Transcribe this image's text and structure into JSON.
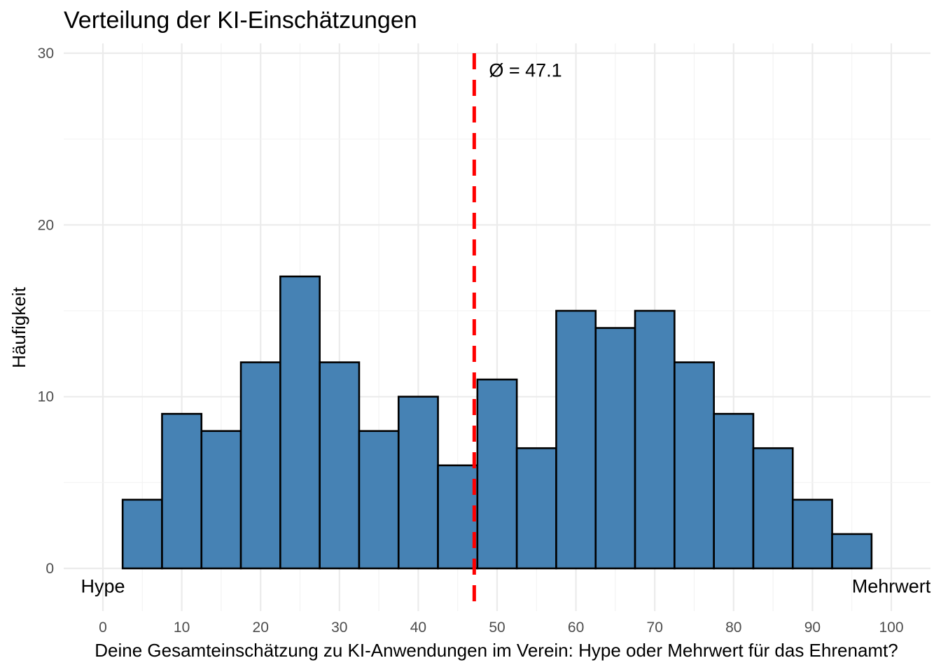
{
  "chart_data": {
    "type": "bar",
    "title": "Verteilung der KI-Einschätzungen",
    "xlabel": "Deine Gesamteinschätzung zu KI-Anwendungen im Verein: Hype oder Mehrwert für das Ehrenamt?",
    "ylabel": "Häufigkeit",
    "xlim": [
      -5,
      105
    ],
    "ylim": [
      -2.5,
      30
    ],
    "x_ticks": [
      0,
      10,
      20,
      30,
      40,
      50,
      60,
      70,
      80,
      90,
      100
    ],
    "y_ticks": [
      0,
      10,
      20,
      30
    ],
    "grid": true,
    "bin_width": 5,
    "bin_centers": [
      5,
      10,
      15,
      20,
      25,
      30,
      35,
      40,
      45,
      50,
      55,
      60,
      65,
      70,
      75,
      80,
      85,
      90,
      95
    ],
    "values": [
      4,
      9,
      8,
      12,
      17,
      12,
      8,
      10,
      6,
      11,
      7,
      15,
      14,
      15,
      12,
      9,
      7,
      4,
      2
    ],
    "bar_color": "#4682B4",
    "bar_outline": "#000000",
    "mean": {
      "value": 47.1,
      "label": "Ø = 47.1",
      "color": "#FF0000",
      "line_style": "dashed"
    },
    "annotations": [
      {
        "text": "Hype",
        "x": 0,
        "y": -1
      },
      {
        "text": "Mehrwert",
        "x": 100,
        "y": -1
      }
    ]
  }
}
